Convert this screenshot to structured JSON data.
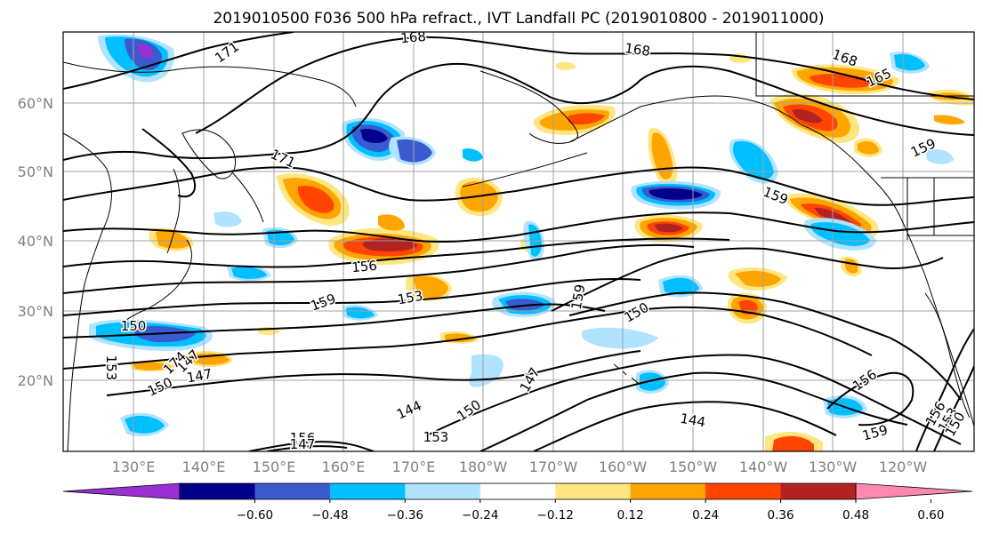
{
  "title": "2019010500 F036 500 hPa refract., IVT Landfall PC (2019010800 - 2019011000)",
  "lat_labels": [
    "60°N",
    "50°N",
    "40°N",
    "30°N",
    "20°N"
  ],
  "lon_labels": [
    "130°E",
    "140°E",
    "150°E",
    "160°E",
    "170°E",
    "180°W",
    "170°W",
    "160°W",
    "150°W",
    "140°W",
    "130°W",
    "120°W"
  ],
  "colorbar": {
    "colors": [
      "#9b30d2",
      "#00008b",
      "#3a5bd0",
      "#00bfff",
      "#afe3ff",
      "#ffffff",
      "#ffe680",
      "#ffa500",
      "#ff4500",
      "#b22222",
      "#ff88b0"
    ],
    "ticks": [
      "−0.60",
      "−0.48",
      "−0.36",
      "−0.24",
      "−0.12",
      "0.12",
      "0.24",
      "0.36",
      "0.48",
      "0.60"
    ]
  },
  "contour_labels": [
    "171",
    "168",
    "168",
    "168",
    "165",
    "171",
    "159",
    "159",
    "156",
    "159",
    "153",
    "150",
    "153",
    "150",
    "159",
    "147",
    "144",
    "150",
    "153",
    "156",
    "147",
    "144",
    "156",
    "159",
    "156",
    "153",
    "150",
    "147",
    "150",
    "147",
    "174"
  ]
}
